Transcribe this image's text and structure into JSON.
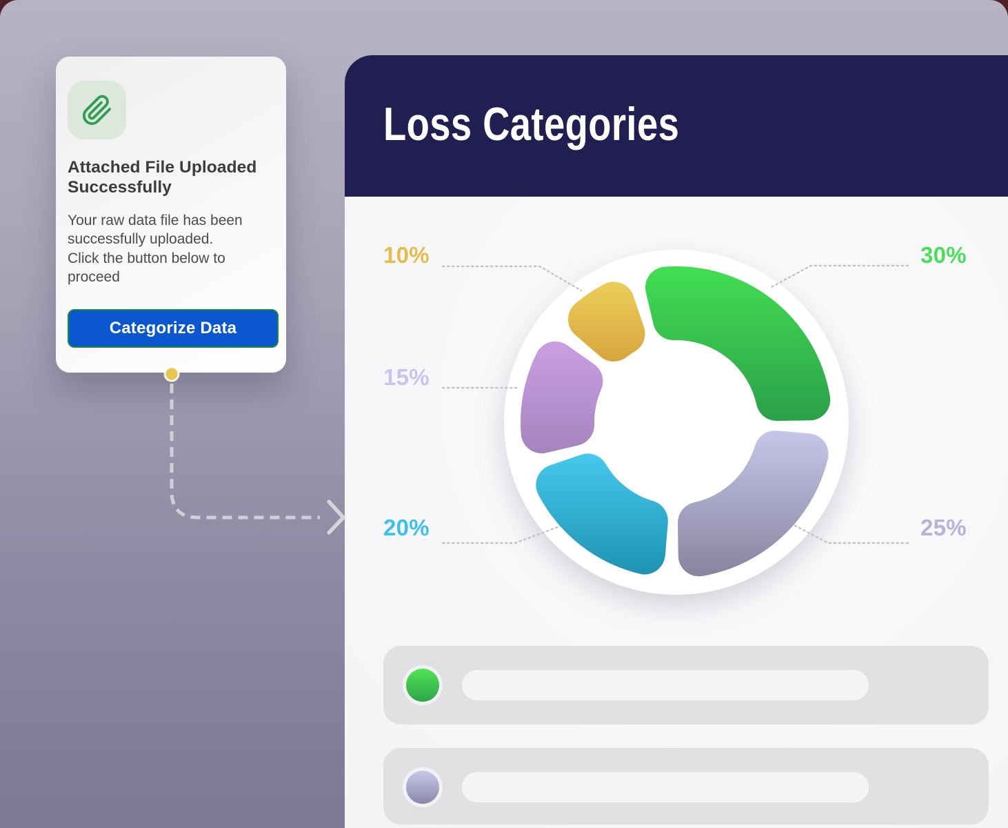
{
  "notification_card": {
    "icon": "paperclip-icon",
    "icon_color": "#2F9E52",
    "title": "Attached File Uploaded\nSuccessfully",
    "body": "Your raw data file has been\nsuccessfully uploaded.\nClick the button below to\nproceed",
    "button_label": "Categorize Data",
    "button_color": "#0B57D0"
  },
  "panel": {
    "title": "Loss Categories",
    "header_color": "#211E52"
  },
  "chart_data": {
    "type": "pie",
    "style": "donut",
    "title": "Loss Categories",
    "unit": "%",
    "direction": "clockwise",
    "start_angle_deg": -16,
    "legend_position": "around",
    "segments": [
      {
        "name": "green",
        "label": "30%",
        "value": 30,
        "color_start": "#43DE52",
        "color_end": "#2BA04A",
        "label_color": "#4ADE5A"
      },
      {
        "name": "lavender",
        "label": "25%",
        "value": 25,
        "color_start": "#C6C6E9",
        "color_end": "#87849F",
        "label_color": "#B6B2D8"
      },
      {
        "name": "cyan",
        "label": "20%",
        "value": 20,
        "color_start": "#46C8EC",
        "color_end": "#1E93B3",
        "label_color": "#3DC1EA"
      },
      {
        "name": "purple",
        "label": "15%",
        "value": 15,
        "color_start": "#CA9FE2",
        "color_end": "#A584BE",
        "label_color": "#C8C4EB"
      },
      {
        "name": "gold",
        "label": "10%",
        "value": 10,
        "color_start": "#ECCD5C",
        "color_end": "#D7A53B",
        "label_color": "#E2BC4D"
      }
    ]
  },
  "legend": {
    "rows": [
      {
        "dot_color_start": "#52E355",
        "dot_color_end": "#2BA54B"
      },
      {
        "dot_color_start": "#C8C8EA",
        "dot_color_end": "#8B88AB"
      }
    ]
  }
}
